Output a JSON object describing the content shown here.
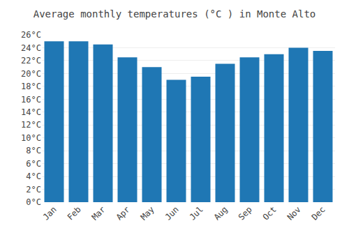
{
  "chart_data": {
    "type": "bar",
    "title": "Average monthly temperatures (°C ) in Monte Alto",
    "categories": [
      "Jan",
      "Feb",
      "Mar",
      "Apr",
      "May",
      "Jun",
      "Jul",
      "Aug",
      "Sep",
      "Oct",
      "Nov",
      "Dec"
    ],
    "values": [
      25.0,
      25.0,
      24.5,
      22.5,
      21.0,
      19.0,
      19.5,
      21.5,
      22.5,
      23.0,
      24.0,
      23.5
    ],
    "ylim": [
      0,
      26
    ],
    "yticks": [
      {
        "value": 0,
        "label": "0°C"
      },
      {
        "value": 2,
        "label": "2°C"
      },
      {
        "value": 4,
        "label": "4°C"
      },
      {
        "value": 6,
        "label": "6°C"
      },
      {
        "value": 8,
        "label": "8°C"
      },
      {
        "value": 10,
        "label": "10°C"
      },
      {
        "value": 12,
        "label": "12°C"
      },
      {
        "value": 14,
        "label": "14°C"
      },
      {
        "value": 16,
        "label": "16°C"
      },
      {
        "value": 18,
        "label": "18°C"
      },
      {
        "value": 20,
        "label": "20°C"
      },
      {
        "value": 22,
        "label": "22°C"
      },
      {
        "value": 24,
        "label": "24°C"
      },
      {
        "value": 26,
        "label": "26°C"
      }
    ],
    "grid": true
  }
}
